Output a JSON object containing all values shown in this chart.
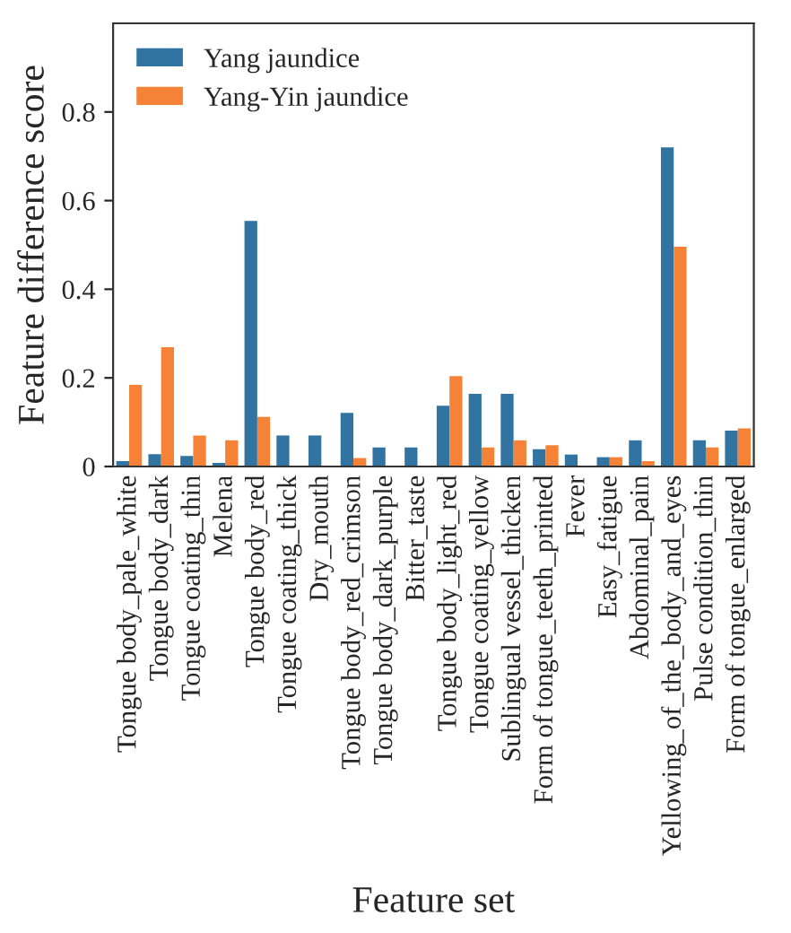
{
  "chart_data": {
    "type": "bar",
    "xlabel": "Feature set",
    "ylabel": "Feature difference score",
    "categories": [
      "Tongue body_pale_white",
      "Tongue body_dark",
      "Tongue coating_thin",
      "Melena",
      "Tongue body_red",
      "Tongue coating_thick",
      "Dry_mouth",
      "Tongue body_red_crimson",
      "Tongue body_dark_purple",
      "Bitter_taste",
      "Tongue body_light_red",
      "Tongue coating_yellow",
      "Sublingual vessel_thicken",
      "Form of tongue_teeth_printed",
      "Fever",
      "Easy_fatigue",
      "Abdominal_pain",
      "Yellowing_of_the_body_and_eyes",
      "Pulse condition_thin",
      "Form of tongue_enlarged"
    ],
    "series": [
      {
        "name": "Yang jaundice",
        "color": "#3274a1",
        "values": [
          0.012,
          0.028,
          0.024,
          0.008,
          0.554,
          0.07,
          0.07,
          0.121,
          0.043,
          0.043,
          0.137,
          0.164,
          0.164,
          0.039,
          0.027,
          0.021,
          0.059,
          0.72,
          0.059,
          0.081
        ]
      },
      {
        "name": "Yang-Yin jaundice",
        "color": "#f58236",
        "values": [
          0.184,
          0.269,
          0.07,
          0.059,
          0.112,
          null,
          null,
          0.019,
          null,
          null,
          0.204,
          0.043,
          0.059,
          0.048,
          null,
          0.021,
          0.012,
          0.496,
          0.043,
          0.086
        ]
      }
    ],
    "ylim": [
      0,
      1.0
    ],
    "yticks": [
      0,
      0.2,
      0.4,
      0.6,
      0.8
    ],
    "legend": "top left",
    "grid": false
  }
}
